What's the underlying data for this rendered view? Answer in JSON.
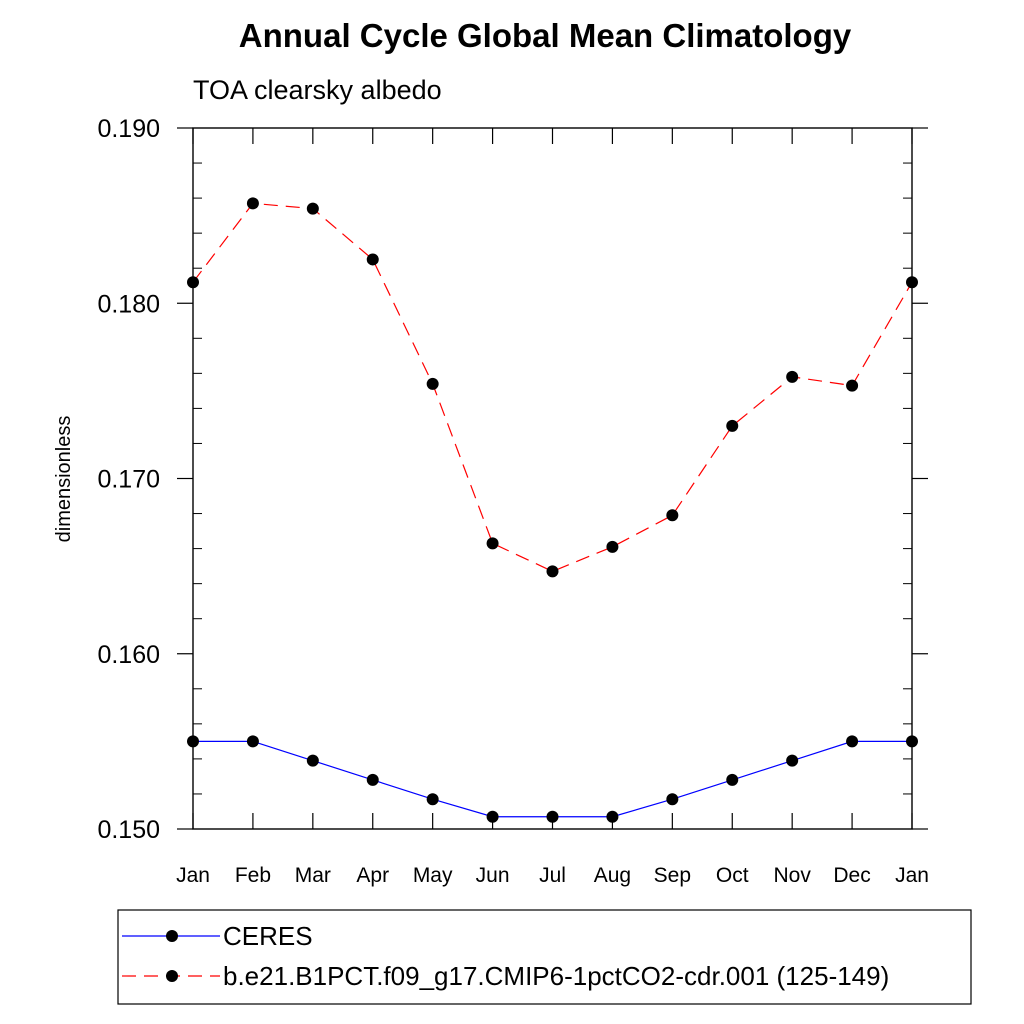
{
  "chart_data": {
    "type": "line",
    "title": "Annual Cycle Global Mean Climatology",
    "subtitle": "TOA clearsky albedo",
    "xlabel": "",
    "ylabel": "dimensionless",
    "categories": [
      "Jan",
      "Feb",
      "Mar",
      "Apr",
      "May",
      "Jun",
      "Jul",
      "Aug",
      "Sep",
      "Oct",
      "Nov",
      "Dec",
      "Jan"
    ],
    "ylim": [
      0.15,
      0.19
    ],
    "yticks": [
      "0.150",
      "0.160",
      "0.170",
      "0.180",
      "0.190"
    ],
    "grid": false,
    "legend_position": "bottom",
    "series": [
      {
        "name": "CERES",
        "color": "#0000ff",
        "line_style": "solid",
        "marker": "filled-circle",
        "values": [
          0.155,
          0.155,
          0.1539,
          0.1528,
          0.1517,
          0.1507,
          0.1507,
          0.1507,
          0.1517,
          0.1528,
          0.1539,
          0.155,
          0.155
        ]
      },
      {
        "name": "b.e21.B1PCT.f09_g17.CMIP6-1pctCO2-cdr.001 (125-149)",
        "color": "#ff0000",
        "line_style": "dashed",
        "marker": "filled-circle",
        "values": [
          0.1812,
          0.1857,
          0.1854,
          0.1825,
          0.1754,
          0.1663,
          0.1647,
          0.1661,
          0.1679,
          0.173,
          0.1758,
          0.1753,
          0.1812
        ]
      }
    ]
  }
}
